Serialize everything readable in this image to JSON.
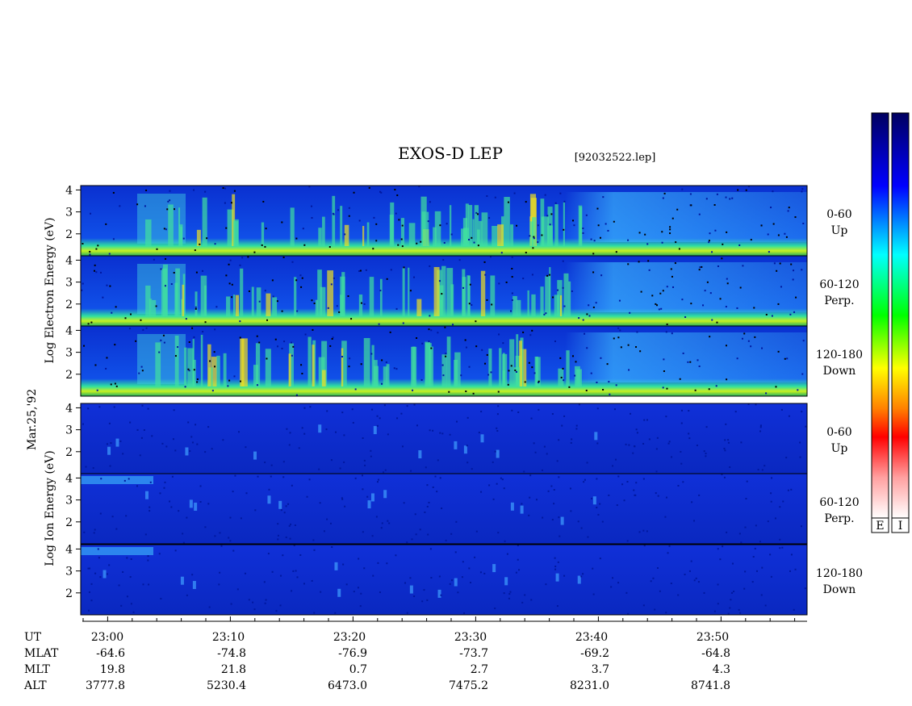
{
  "title": "EXOS-D LEP",
  "file": "[92032522.lep]",
  "date": "Mar.25,'92",
  "electron_axis_label": "Log  Electron  Energy (eV)",
  "ion_axis_label": "Log  Ion  Energy (eV)",
  "panels": [
    {
      "group": "electron",
      "pitch": "0-60",
      "direction": "Up",
      "ylim": [
        1,
        4.2
      ],
      "yticks": [
        2,
        3,
        4
      ]
    },
    {
      "group": "electron",
      "pitch": "60-120",
      "direction": "Perp.",
      "ylim": [
        1,
        4.2
      ],
      "yticks": [
        2,
        3,
        4
      ]
    },
    {
      "group": "electron",
      "pitch": "120-180",
      "direction": "Down",
      "ylim": [
        1,
        4.2
      ],
      "yticks": [
        2,
        3,
        4
      ]
    },
    {
      "group": "ion",
      "pitch": "0-60",
      "direction": "Up",
      "ylim": [
        1,
        4.2
      ],
      "yticks": [
        2,
        3,
        4
      ]
    },
    {
      "group": "ion",
      "pitch": "60-120",
      "direction": "Perp.",
      "ylim": [
        1,
        4.2
      ],
      "yticks": [
        2,
        3,
        4
      ]
    },
    {
      "group": "ion",
      "pitch": "120-180",
      "direction": "Down",
      "ylim": [
        1,
        4.2
      ],
      "yticks": [
        2,
        3,
        4
      ]
    }
  ],
  "ephemeris": [
    {
      "name": "UT",
      "values": [
        "23:00",
        "23:10",
        "23:20",
        "23:30",
        "23:40",
        "23:50"
      ]
    },
    {
      "name": "MLAT",
      "values": [
        "-64.6",
        "-74.8",
        "-76.9",
        "-73.7",
        "-69.2",
        "-64.8"
      ]
    },
    {
      "name": "MLT",
      "values": [
        "19.8",
        "21.8",
        "0.7",
        "2.7",
        "3.7",
        "4.3"
      ]
    },
    {
      "name": "ALT",
      "values": [
        "3777.8",
        "5230.4",
        "6473.0",
        "7475.2",
        "8231.0",
        "8741.8"
      ]
    }
  ],
  "colorbars": [
    "E",
    "I"
  ]
}
